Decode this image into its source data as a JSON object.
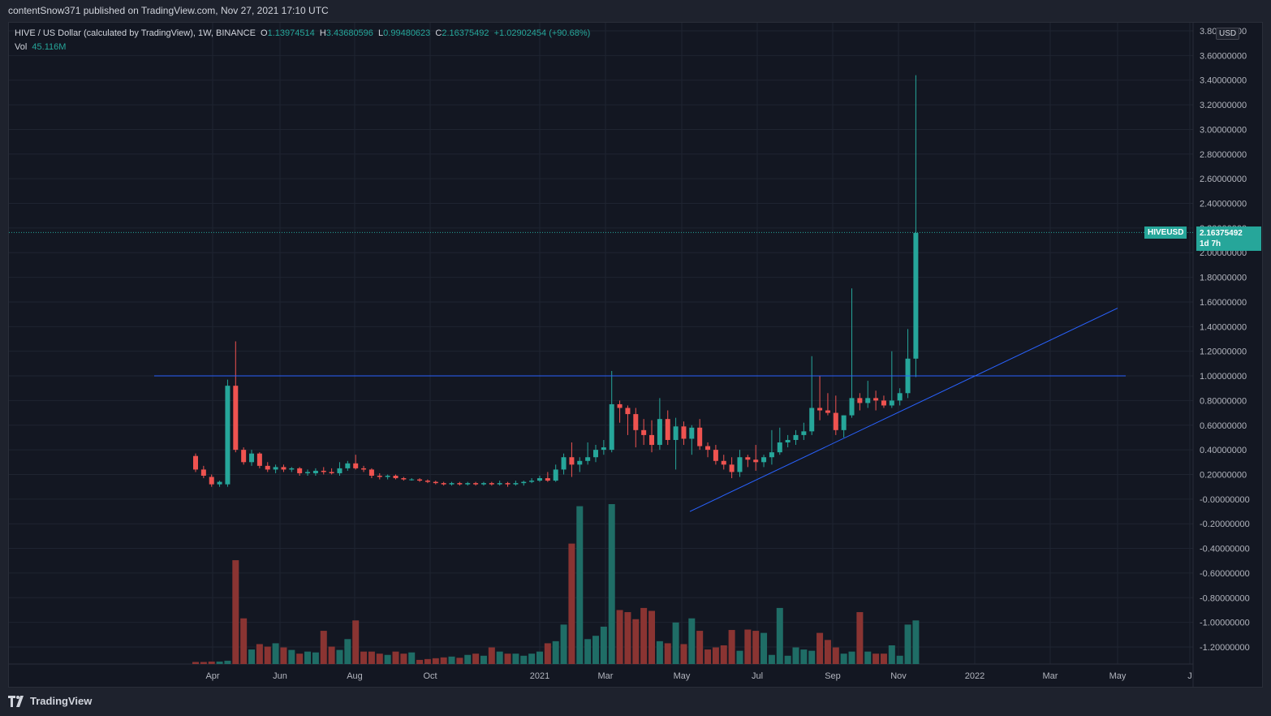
{
  "header": {
    "published": "contentSnow371 published on TradingView.com, Nov 27, 2021 17:10 UTC"
  },
  "legend": {
    "title": "HIVE / US Dollar (calculated by TradingView), 1W, BINANCE",
    "o_label": "O",
    "o": "1.13974514",
    "h_label": "H",
    "h": "3.43680596",
    "l_label": "L",
    "l": "0.99480623",
    "c_label": "C",
    "c": "2.16375492",
    "change": "+1.02902454 (+90.68%)",
    "vol_label": "Vol",
    "vol": "45.116M"
  },
  "price_axis": {
    "currency": "USD",
    "symbol_tag": "HIVEUSD",
    "last_price": "2.16375492",
    "countdown": "1d 7h"
  },
  "footer": {
    "brand": "TradingView"
  },
  "colors": {
    "up": "#26a69a",
    "down": "#ef5350",
    "vol_up": "#1f6d66",
    "vol_down": "#8a3432",
    "line": "#2962ff",
    "bg": "#131722"
  },
  "chart_data": {
    "type": "candlestick",
    "interval": "1W",
    "ylim": [
      -1.3,
      3.8
    ],
    "y_ticks": [
      "3.80000000",
      "3.60000000",
      "3.40000000",
      "3.20000000",
      "3.00000000",
      "2.80000000",
      "2.60000000",
      "2.40000000",
      "2.20000000",
      "2.00000000",
      "1.80000000",
      "1.60000000",
      "1.40000000",
      "1.20000000",
      "1.00000000",
      "0.80000000",
      "0.60000000",
      "0.40000000",
      "0.20000000",
      "-0.00000000",
      "-0.20000000",
      "-0.40000000",
      "-0.60000000",
      "-0.80000000",
      "-1.00000000",
      "-1.20000000"
    ],
    "x_labels": [
      "Apr",
      "Jun",
      "Aug",
      "Oct",
      "2021",
      "Mar",
      "May",
      "Jul",
      "Sep",
      "Nov",
      "2022",
      "Mar",
      "May",
      "J"
    ],
    "candles": [
      [
        0.35,
        0.37,
        0.22,
        0.24
      ],
      [
        0.24,
        0.27,
        0.17,
        0.19
      ],
      [
        0.18,
        0.2,
        0.1,
        0.12
      ],
      [
        0.12,
        0.15,
        0.1,
        0.14
      ],
      [
        0.12,
        0.97,
        0.1,
        0.92
      ],
      [
        0.92,
        1.28,
        0.38,
        0.4
      ],
      [
        0.4,
        0.42,
        0.28,
        0.3
      ],
      [
        0.3,
        0.4,
        0.27,
        0.37
      ],
      [
        0.37,
        0.38,
        0.25,
        0.27
      ],
      [
        0.27,
        0.3,
        0.22,
        0.24
      ],
      [
        0.24,
        0.28,
        0.21,
        0.26
      ],
      [
        0.26,
        0.28,
        0.22,
        0.24
      ],
      [
        0.24,
        0.26,
        0.22,
        0.25
      ],
      [
        0.25,
        0.26,
        0.19,
        0.21
      ],
      [
        0.21,
        0.24,
        0.19,
        0.22
      ],
      [
        0.21,
        0.25,
        0.19,
        0.23
      ],
      [
        0.23,
        0.26,
        0.2,
        0.22
      ],
      [
        0.22,
        0.25,
        0.2,
        0.21
      ],
      [
        0.21,
        0.3,
        0.19,
        0.25
      ],
      [
        0.25,
        0.31,
        0.23,
        0.29
      ],
      [
        0.29,
        0.36,
        0.24,
        0.25
      ],
      [
        0.25,
        0.27,
        0.22,
        0.24
      ],
      [
        0.24,
        0.25,
        0.17,
        0.19
      ],
      [
        0.19,
        0.21,
        0.16,
        0.18
      ],
      [
        0.18,
        0.2,
        0.16,
        0.19
      ],
      [
        0.19,
        0.2,
        0.16,
        0.17
      ],
      [
        0.17,
        0.18,
        0.15,
        0.16
      ],
      [
        0.16,
        0.17,
        0.15,
        0.16
      ],
      [
        0.16,
        0.17,
        0.14,
        0.15
      ],
      [
        0.15,
        0.16,
        0.13,
        0.14
      ],
      [
        0.14,
        0.15,
        0.12,
        0.13
      ],
      [
        0.13,
        0.14,
        0.11,
        0.12
      ],
      [
        0.12,
        0.14,
        0.11,
        0.13
      ],
      [
        0.13,
        0.14,
        0.11,
        0.12
      ],
      [
        0.12,
        0.14,
        0.11,
        0.13
      ],
      [
        0.13,
        0.14,
        0.11,
        0.12
      ],
      [
        0.12,
        0.14,
        0.11,
        0.13
      ],
      [
        0.13,
        0.14,
        0.11,
        0.12
      ],
      [
        0.12,
        0.15,
        0.11,
        0.13
      ],
      [
        0.13,
        0.14,
        0.1,
        0.12
      ],
      [
        0.12,
        0.15,
        0.11,
        0.13
      ],
      [
        0.13,
        0.15,
        0.11,
        0.14
      ],
      [
        0.14,
        0.17,
        0.13,
        0.15
      ],
      [
        0.15,
        0.19,
        0.14,
        0.17
      ],
      [
        0.17,
        0.22,
        0.14,
        0.15
      ],
      [
        0.15,
        0.28,
        0.14,
        0.24
      ],
      [
        0.24,
        0.37,
        0.2,
        0.34
      ],
      [
        0.34,
        0.46,
        0.18,
        0.28
      ],
      [
        0.28,
        0.34,
        0.22,
        0.31
      ],
      [
        0.31,
        0.46,
        0.28,
        0.34
      ],
      [
        0.34,
        0.44,
        0.3,
        0.4
      ],
      [
        0.4,
        0.48,
        0.36,
        0.42
      ],
      [
        0.4,
        1.04,
        0.38,
        0.77
      ],
      [
        0.77,
        0.8,
        0.62,
        0.74
      ],
      [
        0.74,
        0.76,
        0.52,
        0.69
      ],
      [
        0.69,
        0.74,
        0.42,
        0.56
      ],
      [
        0.56,
        0.65,
        0.44,
        0.52
      ],
      [
        0.52,
        0.64,
        0.38,
        0.44
      ],
      [
        0.44,
        0.82,
        0.4,
        0.65
      ],
      [
        0.65,
        0.72,
        0.44,
        0.48
      ],
      [
        0.48,
        0.66,
        0.24,
        0.59
      ],
      [
        0.59,
        0.63,
        0.44,
        0.49
      ],
      [
        0.49,
        0.6,
        0.36,
        0.58
      ],
      [
        0.58,
        0.65,
        0.4,
        0.43
      ],
      [
        0.43,
        0.46,
        0.34,
        0.4
      ],
      [
        0.4,
        0.44,
        0.28,
        0.31
      ],
      [
        0.31,
        0.36,
        0.24,
        0.28
      ],
      [
        0.28,
        0.34,
        0.17,
        0.22
      ],
      [
        0.22,
        0.4,
        0.18,
        0.34
      ],
      [
        0.34,
        0.36,
        0.26,
        0.32
      ],
      [
        0.32,
        0.44,
        0.23,
        0.3
      ],
      [
        0.3,
        0.36,
        0.26,
        0.34
      ],
      [
        0.34,
        0.56,
        0.28,
        0.38
      ],
      [
        0.38,
        0.58,
        0.36,
        0.46
      ],
      [
        0.46,
        0.52,
        0.42,
        0.48
      ],
      [
        0.48,
        0.56,
        0.44,
        0.52
      ],
      [
        0.52,
        0.62,
        0.48,
        0.55
      ],
      [
        0.55,
        1.16,
        0.52,
        0.74
      ],
      [
        0.74,
        1.0,
        0.64,
        0.72
      ],
      [
        0.72,
        0.86,
        0.68,
        0.7
      ],
      [
        0.7,
        0.84,
        0.52,
        0.56
      ],
      [
        0.56,
        0.68,
        0.5,
        0.68
      ],
      [
        0.68,
        1.71,
        0.66,
        0.82
      ],
      [
        0.82,
        0.86,
        0.72,
        0.78
      ],
      [
        0.78,
        0.96,
        0.74,
        0.82
      ],
      [
        0.82,
        0.88,
        0.72,
        0.8
      ],
      [
        0.8,
        0.84,
        0.74,
        0.76
      ],
      [
        0.76,
        1.2,
        0.74,
        0.8
      ],
      [
        0.8,
        0.9,
        0.76,
        0.86
      ],
      [
        0.86,
        1.38,
        0.82,
        1.14
      ],
      [
        1.14,
        3.44,
        0.99,
        2.16
      ]
    ],
    "volumes": [
      0.5,
      0.5,
      0.6,
      0.6,
      0.8,
      25.0,
      11.0,
      3.5,
      4.8,
      4.2,
      5.0,
      4.0,
      3.4,
      2.5,
      3.0,
      2.8,
      8.0,
      4.2,
      3.4,
      6.0,
      10.5,
      3.0,
      3.0,
      2.5,
      2.2,
      3.0,
      2.5,
      2.8,
      1.0,
      1.2,
      1.4,
      1.6,
      1.8,
      1.5,
      2.2,
      2.5,
      2.0,
      4.0,
      3.0,
      2.5,
      2.5,
      2.0,
      2.5,
      3.0,
      5.0,
      5.5,
      9.5,
      29.0,
      38.0,
      6.0,
      6.8,
      9.0,
      38.5,
      13.0,
      12.5,
      10.8,
      13.5,
      12.8,
      5.5,
      5.0,
      10.0,
      4.8,
      11.0,
      8.0,
      3.5,
      4.0,
      4.5,
      8.2,
      3.2,
      8.3,
      8.0,
      7.5,
      2.2,
      13.5,
      2.0,
      4.0,
      3.5,
      3.2,
      7.5,
      5.8,
      4.0,
      2.5,
      3.0,
      12.5,
      3.0,
      2.5,
      2.5,
      4.5,
      2.0,
      9.5,
      10.5
    ],
    "volume_max": 38.5,
    "annotations": {
      "horizontal_line": {
        "price": 1.0
      },
      "trend_line": {
        "from_price": -0.1,
        "to_price": 1.55
      }
    },
    "last_price_line": 2.16375492
  }
}
